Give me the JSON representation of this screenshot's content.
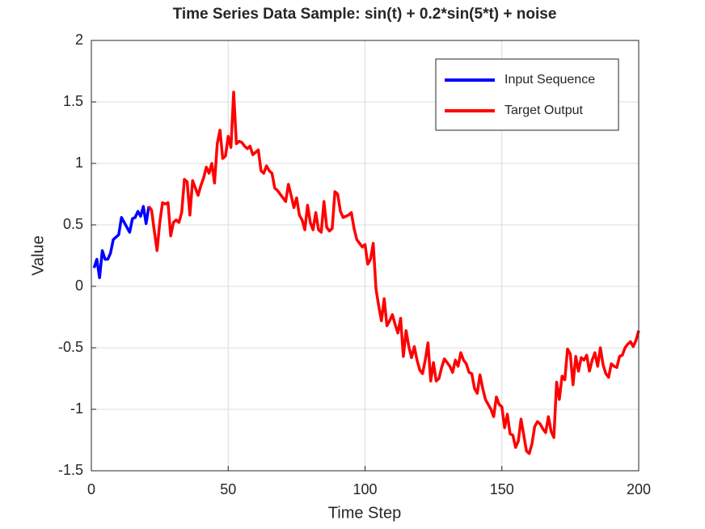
{
  "chart_data": {
    "type": "line",
    "title": "Time Series Data Sample: sin(t) + 0.2*sin(5*t) + noise",
    "xlabel": "Time Step",
    "ylabel": "Value",
    "xlim": [
      0,
      200
    ],
    "xticks": [
      0,
      50,
      100,
      150,
      200
    ],
    "ylim": [
      -1.5,
      2
    ],
    "yticks": [
      -1.5,
      -1,
      -0.5,
      0,
      0.5,
      1,
      1.5,
      2
    ],
    "grid": true,
    "legend": "upper right",
    "series": [
      {
        "name": "Input Sequence",
        "color": "#0000ff",
        "x": [
          1,
          2,
          3,
          4,
          5,
          6,
          7,
          8,
          9,
          10,
          11,
          12,
          13,
          14,
          15,
          16,
          17,
          18,
          19,
          20,
          21
        ],
        "values": [
          0.15,
          0.22,
          0.07,
          0.29,
          0.22,
          0.22,
          0.27,
          0.38,
          0.4,
          0.42,
          0.56,
          0.52,
          0.48,
          0.44,
          0.55,
          0.56,
          0.61,
          0.57,
          0.65,
          0.51,
          0.65
        ]
      },
      {
        "name": "Target Output",
        "color": "#ff0000",
        "x": [
          21,
          22,
          23,
          24,
          25,
          26,
          27,
          28,
          29,
          30,
          31,
          32,
          33,
          34,
          35,
          36,
          37,
          38,
          39,
          40,
          41,
          42,
          43,
          44,
          45,
          46,
          47,
          48,
          49,
          50,
          51,
          52,
          53,
          54,
          55,
          56,
          57,
          58,
          59,
          60,
          61,
          62,
          63,
          64,
          65,
          66,
          67,
          68,
          69,
          70,
          71,
          72,
          73,
          74,
          75,
          76,
          77,
          78,
          79,
          80,
          81,
          82,
          83,
          84,
          85,
          86,
          87,
          88,
          89,
          90,
          91,
          92,
          93,
          94,
          95,
          96,
          97,
          98,
          99,
          100,
          101,
          102,
          103,
          104,
          105,
          106,
          107,
          108,
          109,
          110,
          111,
          112,
          113,
          114,
          115,
          116,
          117,
          118,
          119,
          120,
          121,
          122,
          123,
          124,
          125,
          126,
          127,
          128,
          129,
          130,
          131,
          132,
          133,
          134,
          135,
          136,
          137,
          138,
          139,
          140,
          141,
          142,
          143,
          144,
          145,
          146,
          147,
          148,
          149,
          150,
          151,
          152,
          153,
          154,
          155,
          156,
          157,
          158,
          159,
          160,
          161,
          162,
          163,
          164,
          165,
          166,
          167,
          168,
          169,
          170,
          171,
          172,
          173,
          174,
          175,
          176,
          177,
          178,
          179,
          180,
          181,
          182,
          183,
          184,
          185,
          186,
          187,
          188,
          189,
          190,
          191,
          192,
          193,
          194,
          195,
          196,
          197,
          198,
          199,
          200
        ],
        "values": [
          0.65,
          0.62,
          0.45,
          0.29,
          0.52,
          0.68,
          0.67,
          0.68,
          0.41,
          0.52,
          0.54,
          0.52,
          0.6,
          0.87,
          0.85,
          0.58,
          0.86,
          0.8,
          0.74,
          0.82,
          0.88,
          0.97,
          0.92,
          1.0,
          0.84,
          1.16,
          1.27,
          1.04,
          1.06,
          1.22,
          1.13,
          1.58,
          1.16,
          1.18,
          1.17,
          1.14,
          1.12,
          1.14,
          1.07,
          1.09,
          1.11,
          0.94,
          0.92,
          0.98,
          0.94,
          0.92,
          0.8,
          0.78,
          0.75,
          0.72,
          0.69,
          0.83,
          0.74,
          0.64,
          0.72,
          0.58,
          0.54,
          0.46,
          0.66,
          0.52,
          0.46,
          0.6,
          0.46,
          0.44,
          0.69,
          0.48,
          0.45,
          0.47,
          0.77,
          0.75,
          0.61,
          0.56,
          0.57,
          0.58,
          0.6,
          0.47,
          0.38,
          0.35,
          0.32,
          0.34,
          0.18,
          0.22,
          0.35,
          -0.02,
          -0.16,
          -0.28,
          -0.1,
          -0.32,
          -0.28,
          -0.23,
          -0.31,
          -0.38,
          -0.26,
          -0.57,
          -0.36,
          -0.49,
          -0.58,
          -0.49,
          -0.6,
          -0.68,
          -0.71,
          -0.6,
          -0.46,
          -0.77,
          -0.62,
          -0.77,
          -0.75,
          -0.66,
          -0.59,
          -0.62,
          -0.65,
          -0.7,
          -0.6,
          -0.65,
          -0.54,
          -0.6,
          -0.63,
          -0.7,
          -0.71,
          -0.83,
          -0.87,
          -0.72,
          -0.83,
          -0.92,
          -0.96,
          -1.0,
          -1.06,
          -0.9,
          -0.96,
          -0.98,
          -1.15,
          -1.04,
          -1.2,
          -1.21,
          -1.31,
          -1.26,
          -1.08,
          -1.21,
          -1.34,
          -1.36,
          -1.28,
          -1.14,
          -1.1,
          -1.12,
          -1.16,
          -1.19,
          -1.06,
          -1.18,
          -1.23,
          -0.78,
          -0.92,
          -0.73,
          -0.76,
          -0.51,
          -0.55,
          -0.8,
          -0.57,
          -0.69,
          -0.58,
          -0.6,
          -0.56,
          -0.69,
          -0.6,
          -0.54,
          -0.65,
          -0.5,
          -0.64,
          -0.71,
          -0.74,
          -0.63,
          -0.65,
          -0.66,
          -0.57,
          -0.56,
          -0.5,
          -0.47,
          -0.45,
          -0.49,
          -0.44,
          -0.36
        ]
      }
    ]
  }
}
